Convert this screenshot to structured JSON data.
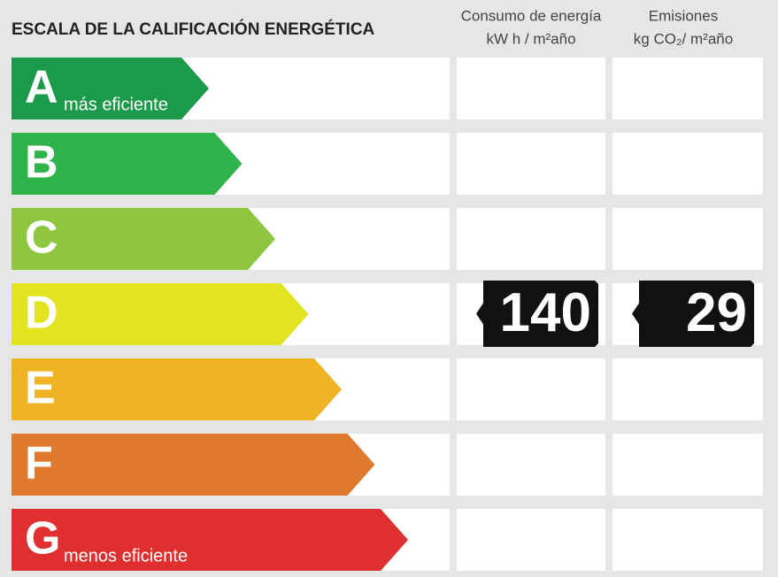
{
  "title": "ESCALA DE LA CALIFICACIÓN ENERGÉTICA",
  "columns": [
    {
      "label": "Consumo de energía",
      "unit": "kW h / m²año"
    },
    {
      "label": "Emisiones",
      "unit": "kg CO₂/ m²año"
    }
  ],
  "ratings": [
    {
      "letter": "A",
      "note": "más eficiente",
      "color": "#1b9a4a"
    },
    {
      "letter": "B",
      "color": "#2fb34b"
    },
    {
      "letter": "C",
      "color": "#8ec63f"
    },
    {
      "letter": "D",
      "color": "#e2e41f",
      "consumption": 140,
      "emissions": 29
    },
    {
      "letter": "E",
      "color": "#efb424"
    },
    {
      "letter": "F",
      "color": "#e07a2f"
    },
    {
      "letter": "G",
      "note": "menos eficiente",
      "color": "#e02f2f"
    }
  ]
}
